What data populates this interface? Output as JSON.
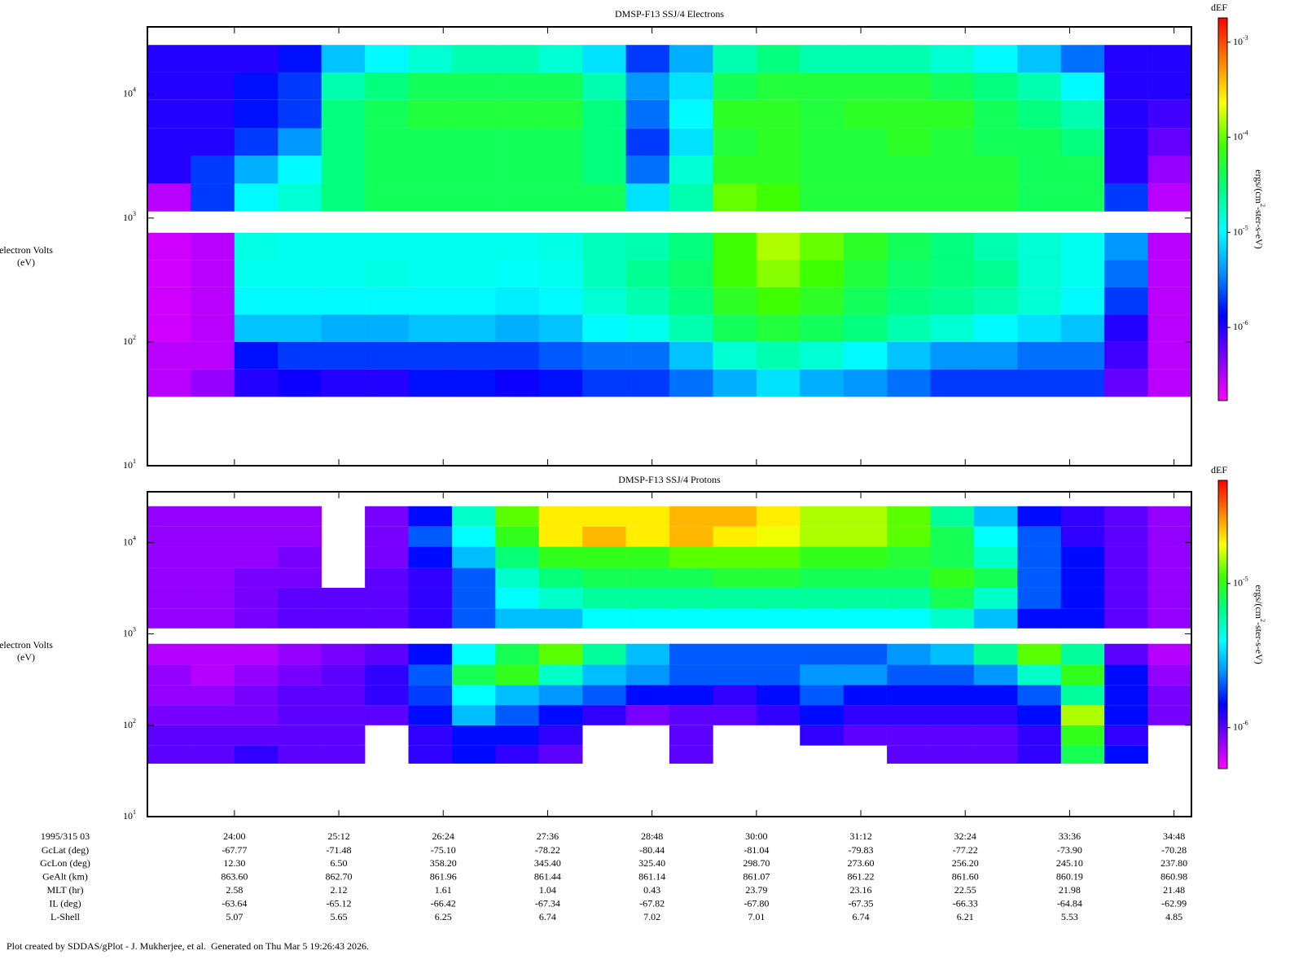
{
  "chart_data": [
    {
      "type": "spectrogram",
      "title": "DMSP-F13 SSJ/4 Electrons",
      "ylabel": [
        "electron Volts",
        "(eV)"
      ],
      "colorbar_title": "dEF",
      "colorbar_label": [
        "ergs/(cm",
        "2",
        "-ster-s-eV)"
      ],
      "ylog": true,
      "zlog": true,
      "xlim": [
        1380,
        2100
      ],
      "ylim": [
        10,
        35000
      ],
      "clim": [
        1.7e-07,
        0.0018
      ],
      "xticks": [
        1440,
        1512,
        1584,
        1656,
        1728,
        1800,
        1872,
        1944,
        2016,
        2088
      ],
      "yticks": [
        {
          "value": 10,
          "label": "10",
          "sup": "1"
        },
        {
          "value": 100,
          "label": "10",
          "sup": "2"
        },
        {
          "value": 1000,
          "label": "10",
          "sup": "3"
        },
        {
          "value": 10000,
          "label": "10",
          "sup": "4"
        }
      ],
      "cticks": [
        {
          "value": 1e-06,
          "label": "10",
          "sup": "-6"
        },
        {
          "value": 1e-05,
          "label": "10",
          "sup": "-5"
        },
        {
          "value": 0.0001,
          "label": "10",
          "sup": "-4"
        },
        {
          "value": 0.001,
          "label": "10",
          "sup": "-3"
        }
      ],
      "colormap": [
        "#ff00ff",
        "#8000ff",
        "#0000ff",
        "#0090ff",
        "#00ffff",
        "#00ff80",
        "#40ff00",
        "#ffff00",
        "#ff8000",
        "#ff0000"
      ],
      "xbins": [
        1380,
        1410,
        1440,
        1470,
        1500,
        1530,
        1560,
        1590,
        1620,
        1650,
        1680,
        1710,
        1740,
        1770,
        1800,
        1830,
        1860,
        1890,
        1920,
        1950,
        1980,
        2010,
        2040,
        2070,
        2100
      ],
      "ybins": [
        36,
        60,
        100,
        166,
        277,
        460,
        760,
        1130,
        1900,
        3200,
        5300,
        9000,
        15000,
        25000
      ],
      "z": [
        [
          3e-07,
          4e-07,
          1e-06,
          1.2e-06,
          1e-06,
          1e-06,
          1.5e-06,
          1.5e-06,
          1.2e-06,
          1.5e-06,
          2e-06,
          2e-06,
          3e-06,
          5e-06,
          8e-06,
          5e-06,
          4e-06,
          3e-06,
          2e-06,
          2e-06,
          2e-06,
          2e-06,
          6e-07,
          3e-07
        ],
        [
          3e-07,
          3e-07,
          1.5e-06,
          2e-06,
          2e-06,
          2e-06,
          2e-06,
          2e-06,
          2e-06,
          2.5e-06,
          3e-06,
          3e-06,
          6e-06,
          1.5e-05,
          2e-05,
          1.5e-05,
          1e-05,
          6e-06,
          4e-06,
          4e-06,
          3e-06,
          3e-06,
          8e-07,
          3e-07
        ],
        [
          2.5e-07,
          3e-07,
          6e-06,
          6e-06,
          5e-06,
          5e-06,
          6e-06,
          6e-06,
          5e-06,
          6e-06,
          1e-05,
          1.2e-05,
          2e-05,
          4e-05,
          5e-05,
          4e-05,
          3e-05,
          2e-05,
          1.5e-05,
          1e-05,
          8e-06,
          6e-06,
          1e-06,
          3e-07
        ],
        [
          2.5e-07,
          3e-07,
          1e-05,
          1e-05,
          1e-05,
          1e-05,
          1e-05,
          1e-05,
          9e-06,
          1e-05,
          1.5e-05,
          2e-05,
          3e-05,
          6e-05,
          8e-05,
          6e-05,
          4e-05,
          3e-05,
          2.5e-05,
          2e-05,
          1.5e-05,
          1e-05,
          2e-06,
          3e-07
        ],
        [
          2.5e-07,
          3e-07,
          1.2e-05,
          1.2e-05,
          1.2e-05,
          1.3e-05,
          1.2e-05,
          1.2e-05,
          1.1e-05,
          1.2e-05,
          1.8e-05,
          2.5e-05,
          3.5e-05,
          8e-05,
          0.00012,
          8e-05,
          5e-05,
          3.5e-05,
          3e-05,
          2.5e-05,
          1.5e-05,
          1.2e-05,
          3e-06,
          3e-07
        ],
        [
          2.5e-07,
          3e-07,
          1.3e-05,
          1.2e-05,
          1.2e-05,
          1.2e-05,
          1.2e-05,
          1.2e-05,
          1.2e-05,
          1.3e-05,
          1.8e-05,
          2e-05,
          3e-05,
          8e-05,
          0.00015,
          0.0001,
          6e-05,
          4e-05,
          3e-05,
          2e-05,
          1.5e-05,
          1.2e-05,
          4e-06,
          3e-07
        ],
        [
          null,
          null,
          null,
          null,
          null,
          null,
          null,
          null,
          null,
          null,
          null,
          null,
          null,
          null,
          null,
          null,
          null,
          null,
          null,
          null,
          null,
          null,
          null,
          null
        ],
        [
          3e-07,
          2e-06,
          1e-05,
          1.5e-05,
          3e-05,
          4e-05,
          4e-05,
          4e-05,
          4e-05,
          4e-05,
          4e-05,
          8e-06,
          2e-05,
          0.0001,
          8e-05,
          5e-05,
          5e-05,
          5e-05,
          5e-05,
          5e-05,
          4e-05,
          4e-05,
          2e-06,
          3e-07
        ],
        [
          1e-06,
          2e-06,
          5e-06,
          1e-05,
          3e-05,
          4e-05,
          4e-05,
          4e-05,
          4e-05,
          4e-05,
          3e-05,
          3e-06,
          1.5e-05,
          6e-05,
          6e-05,
          5e-05,
          5e-05,
          5e-05,
          5e-05,
          5e-05,
          4e-05,
          4e-05,
          1e-06,
          4e-07
        ],
        [
          1e-06,
          1e-06,
          2e-06,
          4e-06,
          3e-05,
          4e-05,
          4e-05,
          4e-05,
          4e-05,
          4e-05,
          3e-05,
          2e-06,
          8e-06,
          5e-05,
          6e-05,
          5e-05,
          5e-05,
          6e-05,
          5e-05,
          4e-05,
          4e-05,
          3e-05,
          1e-06,
          6e-07
        ],
        [
          1e-06,
          1e-06,
          1.5e-06,
          2e-06,
          3e-05,
          4e-05,
          5e-05,
          5e-05,
          5e-05,
          5e-05,
          3e-05,
          3e-06,
          1e-05,
          6e-05,
          6e-05,
          5e-05,
          6e-05,
          6e-05,
          6e-05,
          4e-05,
          3e-05,
          2e-05,
          1e-06,
          8e-07
        ],
        [
          1e-06,
          1e-06,
          1.5e-06,
          2e-06,
          2e-05,
          3e-05,
          4e-05,
          4e-05,
          4e-05,
          4e-05,
          2e-05,
          4e-06,
          8e-06,
          4e-05,
          5e-05,
          5e-05,
          5e-05,
          5e-05,
          4e-05,
          3e-05,
          2e-05,
          1e-05,
          1e-06,
          1e-06
        ],
        [
          1e-06,
          1e-06,
          1e-06,
          1.5e-06,
          6e-06,
          1e-05,
          1.5e-05,
          2e-05,
          2e-05,
          1.5e-05,
          8e-06,
          2e-06,
          5e-06,
          2e-05,
          3e-05,
          2e-05,
          2e-05,
          2e-05,
          1.5e-05,
          1e-05,
          6e-06,
          3e-06,
          1e-06,
          1e-06
        ]
      ]
    },
    {
      "type": "spectrogram",
      "title": "DMSP-F13 SSJ/4 Protons",
      "ylabel": [
        "electron Volts",
        "(eV)"
      ],
      "colorbar_title": "dEF",
      "colorbar_label": [
        "ergs/(cm",
        "2",
        "-ster-s-eV)"
      ],
      "ylog": true,
      "zlog": true,
      "xlim": [
        1380,
        2100
      ],
      "ylim": [
        10,
        36000
      ],
      "clim": [
        5.2e-07,
        5.2e-05
      ],
      "xticks": [
        {
          "value": 1440,
          "label": "24:00"
        },
        {
          "value": 1512,
          "label": "25:12"
        },
        {
          "value": 1584,
          "label": "26:24"
        },
        {
          "value": 1656,
          "label": "27:36"
        },
        {
          "value": 1728,
          "label": "28:48"
        },
        {
          "value": 1800,
          "label": "30:00"
        },
        {
          "value": 1872,
          "label": "31:12"
        },
        {
          "value": 1944,
          "label": "32:24"
        },
        {
          "value": 2016,
          "label": "33:36"
        },
        {
          "value": 2088,
          "label": "34:48"
        }
      ],
      "yticks": [
        {
          "value": 10,
          "label": "10",
          "sup": "1"
        },
        {
          "value": 100,
          "label": "10",
          "sup": "2"
        },
        {
          "value": 1000,
          "label": "10",
          "sup": "3"
        },
        {
          "value": 10000,
          "label": "10",
          "sup": "4"
        }
      ],
      "cticks": [
        {
          "value": 1e-06,
          "label": "10",
          "sup": "-6"
        },
        {
          "value": 1e-05,
          "label": "10",
          "sup": "-5"
        }
      ],
      "colormap": [
        "#ff00ff",
        "#8000ff",
        "#0000ff",
        "#0090ff",
        "#00ffff",
        "#00ff80",
        "#40ff00",
        "#ffff00",
        "#ff8000",
        "#ff0000"
      ],
      "xbins": [
        1380,
        1410,
        1440,
        1470,
        1500,
        1530,
        1560,
        1590,
        1620,
        1650,
        1680,
        1710,
        1740,
        1770,
        1800,
        1830,
        1860,
        1890,
        1920,
        1950,
        1980,
        2010,
        2040,
        2070,
        2100
      ],
      "ybins": [
        38,
        60,
        100,
        166,
        277,
        460,
        780,
        1150,
        1900,
        3200,
        5300,
        9000,
        15000,
        25000
      ],
      "z": [
        [
          1e-06,
          1e-06,
          1.2e-06,
          1e-06,
          1e-06,
          null,
          1.2e-06,
          1.5e-06,
          1.2e-06,
          1e-06,
          null,
          null,
          1e-06,
          null,
          null,
          null,
          null,
          1e-06,
          1e-06,
          1e-06,
          1.2e-06,
          8e-06,
          1.5e-06,
          null
        ],
        [
          1e-06,
          1e-06,
          1e-06,
          1e-06,
          1e-06,
          null,
          1.2e-06,
          1.5e-06,
          1.5e-06,
          1.2e-06,
          null,
          null,
          1e-06,
          null,
          null,
          1.2e-06,
          1e-06,
          1e-06,
          1e-06,
          1e-06,
          1.2e-06,
          1e-05,
          1.2e-06,
          null
        ],
        [
          9e-07,
          9e-07,
          9e-07,
          1e-06,
          1e-06,
          1e-06,
          1.5e-06,
          3e-06,
          2e-06,
          1.5e-06,
          1.2e-06,
          9e-07,
          1e-06,
          1e-06,
          1.2e-06,
          1.5e-06,
          1.2e-06,
          1.2e-06,
          1.2e-06,
          1.2e-06,
          1.5e-06,
          1.5e-05,
          1.5e-06,
          9e-07
        ],
        [
          8e-07,
          8e-07,
          9e-07,
          1e-06,
          1e-06,
          1.2e-06,
          1.8e-06,
          4e-06,
          3e-06,
          2.5e-06,
          2e-06,
          1.5e-06,
          1.5e-06,
          1.2e-06,
          1.5e-06,
          2e-06,
          1.5e-06,
          1.5e-06,
          1.5e-06,
          1.5e-06,
          2e-06,
          6e-06,
          1.5e-06,
          9e-07
        ],
        [
          8e-07,
          7e-07,
          8e-07,
          9e-07,
          1e-06,
          1.2e-06,
          2e-06,
          8e-06,
          1e-05,
          5e-06,
          3e-06,
          2.5e-06,
          2e-06,
          2e-06,
          2e-06,
          2.5e-06,
          2.5e-06,
          2e-06,
          2e-06,
          2.5e-06,
          5e-06,
          1e-05,
          1.5e-06,
          8e-07
        ],
        [
          7e-07,
          7e-07,
          7e-07,
          8e-07,
          9e-07,
          1e-06,
          1.5e-06,
          4e-06,
          8e-06,
          1.2e-05,
          6e-06,
          3e-06,
          2e-06,
          2e-06,
          2e-06,
          2e-06,
          2e-06,
          2.5e-06,
          3e-06,
          6e-06,
          1.2e-05,
          6e-06,
          1e-06,
          7e-07
        ],
        [
          null,
          null,
          null,
          null,
          null,
          null,
          null,
          null,
          null,
          null,
          null,
          null,
          null,
          null,
          null,
          null,
          null,
          null,
          null,
          null,
          null,
          null,
          null,
          null
        ],
        [
          8e-07,
          8e-07,
          9e-07,
          1e-06,
          1e-06,
          1e-06,
          1.2e-06,
          2e-06,
          3e-06,
          3e-06,
          4e-06,
          4e-06,
          4e-06,
          4e-06,
          4e-06,
          4e-06,
          4e-06,
          4e-06,
          5e-06,
          3e-06,
          1.5e-06,
          1.5e-06,
          1e-06,
          8e-07
        ],
        [
          8e-07,
          8e-07,
          9e-07,
          1e-06,
          1e-06,
          1e-06,
          1.2e-06,
          2e-06,
          4e-06,
          5e-06,
          6e-06,
          6e-06,
          6e-06,
          6e-06,
          6e-06,
          6e-06,
          6e-06,
          6e-06,
          8e-06,
          5e-06,
          2e-06,
          1.5e-06,
          1e-06,
          8e-07
        ],
        [
          8e-07,
          8e-07,
          9e-07,
          9e-07,
          null,
          1e-06,
          1.2e-06,
          2e-06,
          5e-06,
          7e-06,
          8e-06,
          8e-06,
          8e-06,
          9e-06,
          9e-06,
          8e-06,
          8e-06,
          8e-06,
          1e-05,
          8e-06,
          2e-06,
          1.5e-06,
          1e-06,
          8e-07
        ],
        [
          8e-07,
          8e-07,
          8e-07,
          9e-07,
          null,
          9e-07,
          1.5e-06,
          3e-06,
          7e-06,
          1e-05,
          1e-05,
          1e-05,
          1.2e-05,
          1.2e-05,
          1.2e-05,
          1e-05,
          1e-05,
          9e-06,
          8e-06,
          5e-06,
          2e-06,
          1.5e-06,
          1e-06,
          8e-07
        ],
        [
          8e-07,
          8e-07,
          8e-07,
          8e-07,
          null,
          9e-07,
          2e-06,
          4e-06,
          1e-05,
          2e-05,
          2.5e-05,
          2e-05,
          2.5e-05,
          2e-05,
          1.8e-05,
          1.5e-05,
          1.5e-05,
          1.2e-05,
          8e-06,
          4e-06,
          2e-06,
          1.2e-06,
          1e-06,
          8e-07
        ],
        [
          8e-07,
          8e-07,
          8e-07,
          8e-07,
          null,
          9e-07,
          1.5e-06,
          5e-06,
          1.2e-05,
          2e-05,
          2e-05,
          2e-05,
          2.5e-05,
          2.5e-05,
          2e-05,
          1.5e-05,
          1.5e-05,
          1.2e-05,
          6e-06,
          3e-06,
          1.5e-06,
          1.2e-06,
          1e-06,
          8e-07
        ]
      ]
    }
  ],
  "ephemeris": {
    "time_label": "1995/315 03",
    "rows": [
      {
        "label": "GcLat (deg)",
        "values": [
          "-67.77",
          "-71.48",
          "-75.10",
          "-78.22",
          "-80.44",
          "-81.04",
          "-79.83",
          "-77.22",
          "-73.90",
          "-70.28"
        ]
      },
      {
        "label": "GcLon (deg)",
        "values": [
          "12.30",
          "6.50",
          "358.20",
          "345.40",
          "325.40",
          "298.70",
          "273.60",
          "256.20",
          "245.10",
          "237.80"
        ]
      },
      {
        "label": "GeAlt (km)",
        "values": [
          "863.60",
          "862.70",
          "861.96",
          "861.44",
          "861.14",
          "861.07",
          "861.22",
          "861.60",
          "860.19",
          "860.98"
        ]
      },
      {
        "label": "MLT (hr)",
        "values": [
          "2.58",
          "2.12",
          "1.61",
          "1.04",
          "0.43",
          "23.79",
          "23.16",
          "22.55",
          "21.98",
          "21.48"
        ]
      },
      {
        "label": "IL (deg)",
        "values": [
          "-63.64",
          "-65.12",
          "-66.42",
          "-67.34",
          "-67.82",
          "-67.80",
          "-67.35",
          "-66.33",
          "-64.84",
          "-62.99"
        ]
      },
      {
        "label": "L-Shell",
        "values": [
          "5.07",
          "5.65",
          "6.25",
          "6.74",
          "7.02",
          "7.01",
          "6.74",
          "6.21",
          "5.53",
          "4.85"
        ]
      }
    ]
  },
  "footer": "Plot created by SDDAS/gPlot - J. Mukherjee, et al.  Generated on Thu Mar 5 19:26:43 2026."
}
